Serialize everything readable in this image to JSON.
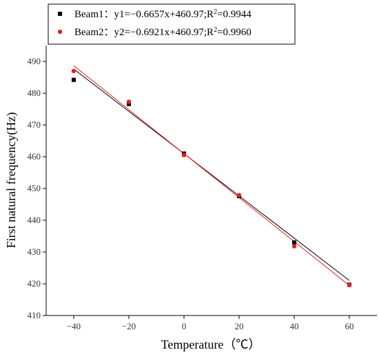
{
  "chart_data": {
    "type": "scatter",
    "title": "",
    "xlabel": "Temperature（℃）",
    "ylabel": "First natural frequency(Hz)",
    "xlim": [
      -50,
      70
    ],
    "ylim": [
      410,
      495
    ],
    "xticks": [
      -40,
      -20,
      0,
      20,
      40,
      60
    ],
    "yticks": [
      410,
      420,
      430,
      440,
      450,
      460,
      470,
      480,
      490
    ],
    "grid": false,
    "legend_position": "top-left",
    "series": [
      {
        "name": "Beam1",
        "equation": "y1=−0.6657x+460.97;R",
        "r2": "=0.9944",
        "color": "#000000",
        "marker": "square",
        "fit": {
          "slope": -0.6657,
          "intercept": 460.97
        },
        "x": [
          -40,
          -20,
          0,
          20,
          40,
          60
        ],
        "y": [
          484.2,
          476.6,
          461.0,
          447.6,
          433.0,
          419.7
        ]
      },
      {
        "name": "Beam2",
        "equation": "y2=−0.6921x+460.97;R",
        "r2": "=0.9960",
        "color": "#e8201e",
        "marker": "circle",
        "fit": {
          "slope": -0.6921,
          "intercept": 460.97
        },
        "x": [
          -40,
          -20,
          0,
          20,
          40,
          60
        ],
        "y": [
          487.0,
          477.3,
          460.5,
          447.9,
          431.8,
          419.6
        ]
      }
    ]
  }
}
